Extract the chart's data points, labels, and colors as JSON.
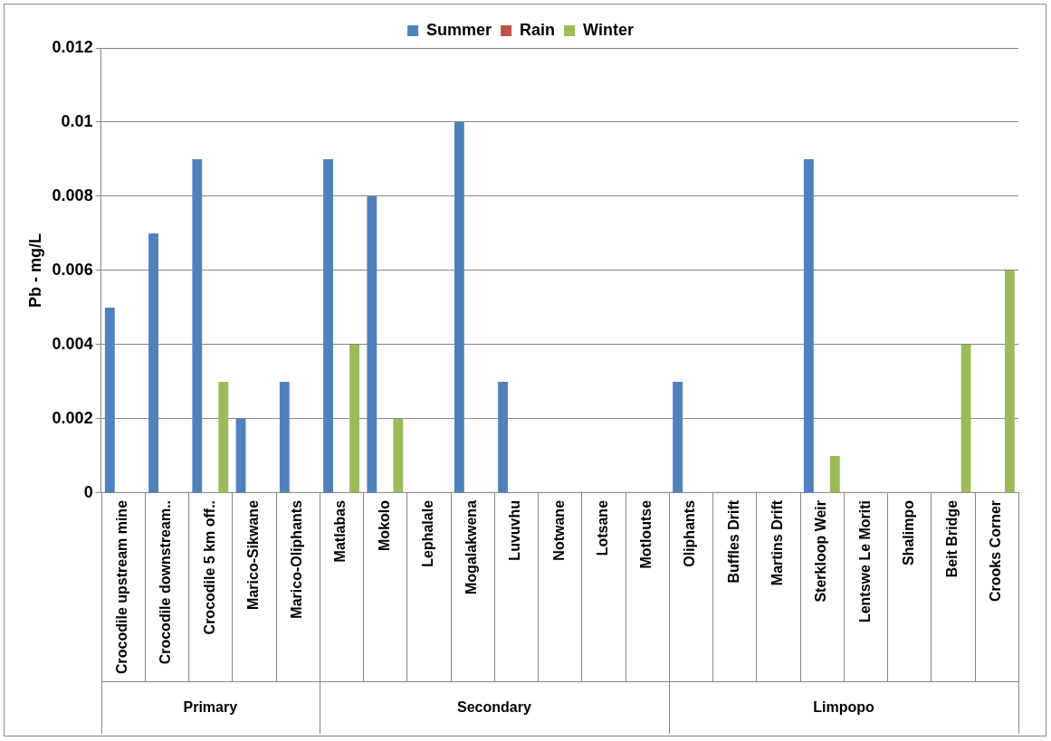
{
  "chart_data": {
    "type": "bar",
    "ylabel": "Pb - mg/L",
    "legend": "top",
    "grid": "y",
    "categories": [
      "Crocodile upstream mine",
      "Crocodile downstream..",
      "Crocodile 5 km off..",
      "Marico-Sikwane",
      "Marico-Oliphants",
      "Matlabas",
      "Mokolo",
      "Lephalale",
      "Mogalakwena",
      "Luvuvhu",
      "Notwane",
      "Lotsane",
      "Motloutse",
      "Oliphants",
      "Buffles Drift",
      "Martins Drift",
      "Sterkloop Weir",
      "Lentswe Le Moriti",
      "Shalimpo",
      "Beit Bridge",
      "Crooks Corner"
    ],
    "series": [
      {
        "name": "Summer",
        "color": "#4f81bd",
        "values": [
          0.005,
          0.007,
          0.009,
          0.002,
          0.003,
          0.009,
          0.008,
          null,
          0.01,
          0.003,
          null,
          null,
          null,
          0.003,
          null,
          null,
          0.009,
          null,
          null,
          null,
          null
        ]
      },
      {
        "name": "Rain",
        "color": "#c0504d",
        "values": [
          null,
          null,
          null,
          null,
          null,
          null,
          null,
          null,
          null,
          null,
          null,
          null,
          null,
          null,
          null,
          null,
          null,
          null,
          null,
          null,
          null
        ]
      },
      {
        "name": "Winter",
        "color": "#9bbb59",
        "values": [
          null,
          null,
          0.003,
          null,
          null,
          0.004,
          0.002,
          null,
          null,
          null,
          null,
          null,
          null,
          null,
          null,
          null,
          0.001,
          null,
          null,
          0.004,
          0.006
        ]
      }
    ],
    "ylim": [
      0,
      0.012
    ],
    "yticks": [
      0,
      0.002,
      0.004,
      0.006,
      0.008,
      0.01,
      0.012
    ],
    "annotations": [
      "Primary",
      "Secondary",
      "Limpopo"
    ]
  }
}
